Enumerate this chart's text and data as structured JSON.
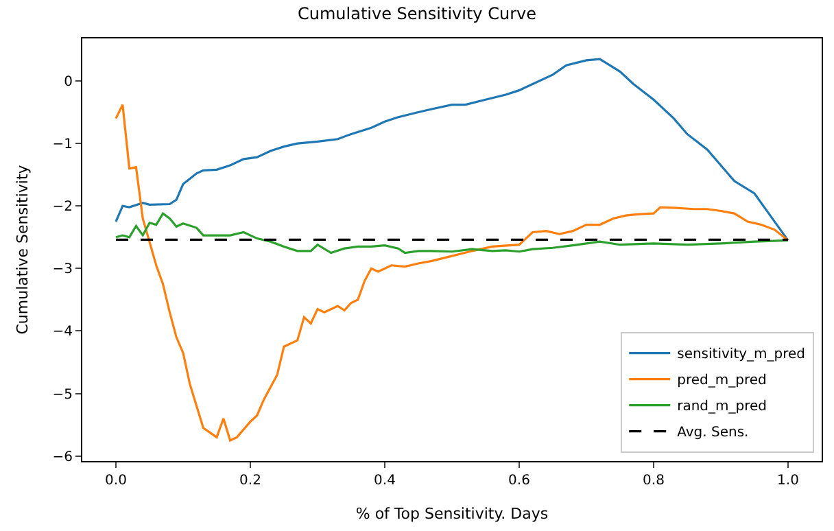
{
  "chart_data": {
    "type": "line",
    "title": "Cumulative Sensitivity Curve",
    "xlabel": "% of Top Sensitivity. Days",
    "ylabel": "Cumulative Sensitivity",
    "xlim": [
      -0.05,
      1.05
    ],
    "ylim": [
      -6.08,
      0.68
    ],
    "xticks": [
      {
        "value": 0,
        "label": "0.0"
      },
      {
        "value": 0.2,
        "label": "0.2"
      },
      {
        "value": 0.4,
        "label": "0.4"
      },
      {
        "value": 0.6,
        "label": "0.6"
      },
      {
        "value": 0.8,
        "label": "0.8"
      },
      {
        "value": 1,
        "label": "1.0"
      }
    ],
    "yticks": [
      0,
      {
        "value": -1,
        "label": "−1"
      },
      {
        "value": -2,
        "label": "−2"
      },
      {
        "value": -3,
        "label": "−3"
      },
      {
        "value": -4,
        "label": "−4"
      },
      {
        "value": -5,
        "label": "−5"
      },
      {
        "value": -6,
        "label": "−6"
      }
    ],
    "grid": false,
    "legend": "bottom right",
    "marker": "none",
    "series": [
      {
        "name": "sensitivity_m_pred",
        "color": "#1f77b4",
        "x": [
          0,
          0.01,
          0.02,
          0.04,
          0.05,
          0.08,
          0.09,
          0.1,
          0.12,
          0.13,
          0.15,
          0.17,
          0.19,
          0.21,
          0.23,
          0.25,
          0.27,
          0.3,
          0.33,
          0.35,
          0.38,
          0.4,
          0.42,
          0.45,
          0.47,
          0.5,
          0.52,
          0.55,
          0.58,
          0.6,
          0.62,
          0.65,
          0.67,
          0.7,
          0.72,
          0.75,
          0.77,
          0.8,
          0.83,
          0.85,
          0.88,
          0.9,
          0.92,
          0.95,
          0.97,
          1.0
        ],
        "values": [
          -2.25,
          -2.0,
          -2.02,
          -1.95,
          -1.98,
          -1.97,
          -1.9,
          -1.65,
          -1.48,
          -1.43,
          -1.42,
          -1.35,
          -1.25,
          -1.22,
          -1.12,
          -1.05,
          -1.0,
          -0.97,
          -0.93,
          -0.85,
          -0.75,
          -0.65,
          -0.58,
          -0.5,
          -0.45,
          -0.38,
          -0.38,
          -0.3,
          -0.22,
          -0.15,
          -0.05,
          0.1,
          0.25,
          0.33,
          0.35,
          0.15,
          -0.05,
          -0.3,
          -0.6,
          -0.85,
          -1.1,
          -1.35,
          -1.6,
          -1.8,
          -2.1,
          -2.55
        ]
      },
      {
        "name": "pred_m_pred",
        "color": "#ff7f0e",
        "x": [
          0,
          0.01,
          0.02,
          0.03,
          0.04,
          0.06,
          0.07,
          0.08,
          0.09,
          0.1,
          0.11,
          0.12,
          0.13,
          0.15,
          0.16,
          0.17,
          0.18,
          0.2,
          0.21,
          0.22,
          0.24,
          0.25,
          0.27,
          0.28,
          0.29,
          0.3,
          0.31,
          0.33,
          0.34,
          0.35,
          0.36,
          0.37,
          0.38,
          0.39,
          0.41,
          0.43,
          0.45,
          0.47,
          0.5,
          0.53,
          0.56,
          0.6,
          0.62,
          0.64,
          0.66,
          0.68,
          0.7,
          0.72,
          0.74,
          0.76,
          0.78,
          0.8,
          0.81,
          0.83,
          0.86,
          0.88,
          0.9,
          0.92,
          0.94,
          0.96,
          0.98,
          1.0
        ],
        "values": [
          -0.6,
          -0.38,
          -1.4,
          -1.38,
          -2.2,
          -2.95,
          -3.25,
          -3.7,
          -4.1,
          -4.35,
          -4.85,
          -5.2,
          -5.55,
          -5.7,
          -5.4,
          -5.75,
          -5.7,
          -5.45,
          -5.35,
          -5.1,
          -4.7,
          -4.25,
          -4.15,
          -3.78,
          -3.88,
          -3.65,
          -3.7,
          -3.6,
          -3.67,
          -3.55,
          -3.5,
          -3.2,
          -3.0,
          -3.05,
          -2.95,
          -2.97,
          -2.92,
          -2.88,
          -2.8,
          -2.72,
          -2.65,
          -2.62,
          -2.42,
          -2.4,
          -2.45,
          -2.4,
          -2.3,
          -2.3,
          -2.2,
          -2.15,
          -2.13,
          -2.12,
          -2.02,
          -2.03,
          -2.05,
          -2.05,
          -2.08,
          -2.12,
          -2.25,
          -2.3,
          -2.38,
          -2.55
        ]
      },
      {
        "name": "rand_m_pred",
        "color": "#2ca02c",
        "x": [
          0,
          0.01,
          0.02,
          0.03,
          0.04,
          0.05,
          0.06,
          0.07,
          0.08,
          0.09,
          0.1,
          0.12,
          0.13,
          0.17,
          0.19,
          0.21,
          0.23,
          0.25,
          0.27,
          0.29,
          0.3,
          0.32,
          0.34,
          0.36,
          0.38,
          0.4,
          0.42,
          0.43,
          0.45,
          0.47,
          0.5,
          0.53,
          0.56,
          0.58,
          0.6,
          0.62,
          0.65,
          0.68,
          0.72,
          0.75,
          0.8,
          0.85,
          0.9,
          0.95,
          1.0
        ],
        "values": [
          -2.5,
          -2.47,
          -2.5,
          -2.32,
          -2.47,
          -2.27,
          -2.3,
          -2.12,
          -2.2,
          -2.33,
          -2.28,
          -2.35,
          -2.47,
          -2.47,
          -2.42,
          -2.52,
          -2.57,
          -2.65,
          -2.72,
          -2.72,
          -2.62,
          -2.75,
          -2.68,
          -2.65,
          -2.65,
          -2.63,
          -2.68,
          -2.75,
          -2.72,
          -2.72,
          -2.73,
          -2.69,
          -2.72,
          -2.71,
          -2.73,
          -2.69,
          -2.67,
          -2.63,
          -2.57,
          -2.62,
          -2.6,
          -2.62,
          -2.6,
          -2.57,
          -2.55
        ]
      },
      {
        "name": "Avg. Sens.",
        "color": "#000000",
        "line_style": "dashed",
        "x": [
          0,
          1
        ],
        "values": [
          -2.54,
          -2.54
        ]
      }
    ]
  }
}
